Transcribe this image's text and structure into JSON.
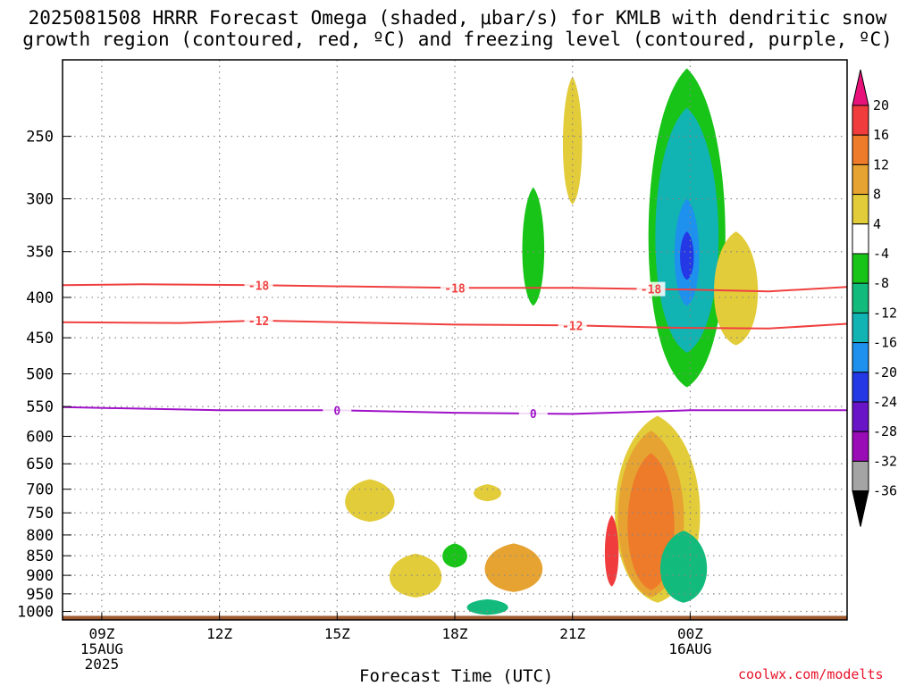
{
  "title": {
    "line1": "2025081508 HRRR Forecast Omega (shaded, μbar/s) for KMLB with dendritic snow",
    "line2": "growth region (contoured, red, ºC) and freezing level (contoured, purple, ºC)"
  },
  "xlabel": "Forecast Time (UTC)",
  "credit": "coolwx.com/modelts",
  "chart_data": {
    "type": "time-height cross section (filled contour)",
    "x_unit": "UTC time",
    "x_range": [
      "2025-08-15T08:00Z",
      "2025-08-16T04:00Z"
    ],
    "x_ticks": [
      {
        "time": "2025-08-15T09:00Z",
        "label": [
          "09Z",
          "15AUG",
          "2025"
        ]
      },
      {
        "time": "2025-08-15T12:00Z",
        "label": [
          "12Z"
        ]
      },
      {
        "time": "2025-08-15T15:00Z",
        "label": [
          "15Z"
        ]
      },
      {
        "time": "2025-08-15T18:00Z",
        "label": [
          "18Z"
        ]
      },
      {
        "time": "2025-08-15T21:00Z",
        "label": [
          "21Z"
        ]
      },
      {
        "time": "2025-08-16T00:00Z",
        "label": [
          "00Z",
          "16AUG"
        ]
      }
    ],
    "y_unit": "hPa",
    "y_scale": "log, inverted",
    "y_range": [
      1025,
      200
    ],
    "y_ticks": [
      250,
      300,
      350,
      400,
      450,
      500,
      550,
      600,
      650,
      700,
      750,
      800,
      850,
      900,
      950,
      1000
    ],
    "grid": true,
    "colorbar": {
      "labels": [
        20,
        16,
        12,
        8,
        4,
        -4,
        -8,
        -12,
        -16,
        -20,
        -24,
        -28,
        -32,
        -36
      ],
      "colors": [
        "#e8137a",
        "#f03c3c",
        "#ee7b2a",
        "#e6a332",
        "#e3cc3a",
        "#ffffff",
        "#18c418",
        "#12bb7c",
        "#12b3b3",
        "#1e90ee",
        "#2438e6",
        "#6a14c8",
        "#9a0cb6",
        "#a4a4a4",
        "#000000"
      ]
    },
    "contours": [
      {
        "name": "-18",
        "color": "#f04040",
        "points": [
          [
            "2025-08-15T08:00Z",
            386
          ],
          [
            "2025-08-15T10:00Z",
            385
          ],
          [
            "2025-08-15T13:00Z",
            386
          ],
          [
            "2025-08-15T18:00Z",
            389
          ],
          [
            "2025-08-15T21:00Z",
            389
          ],
          [
            "2025-08-16T00:00Z",
            391
          ],
          [
            "2025-08-16T02:00Z",
            393
          ],
          [
            "2025-08-16T04:00Z",
            388
          ]
        ],
        "labels": [
          "2025-08-15T13:00Z",
          "2025-08-15T18:00Z",
          "2025-08-15T23:00Z"
        ]
      },
      {
        "name": "-12",
        "color": "#f04040",
        "points": [
          [
            "2025-08-15T08:00Z",
            430
          ],
          [
            "2025-08-15T11:00Z",
            431
          ],
          [
            "2025-08-15T13:00Z",
            428
          ],
          [
            "2025-08-15T18:00Z",
            433
          ],
          [
            "2025-08-15T21:00Z",
            434
          ],
          [
            "2025-08-15T23:30Z",
            437
          ],
          [
            "2025-08-16T02:00Z",
            438
          ],
          [
            "2025-08-16T04:00Z",
            432
          ]
        ],
        "labels": [
          "2025-08-15T13:00Z",
          "2025-08-15T21:00Z"
        ]
      },
      {
        "name": "0",
        "color": "#a012c8",
        "points": [
          [
            "2025-08-15T08:00Z",
            551
          ],
          [
            "2025-08-15T12:00Z",
            556
          ],
          [
            "2025-08-15T15:00Z",
            556
          ],
          [
            "2025-08-15T18:00Z",
            560
          ],
          [
            "2025-08-15T21:00Z",
            562
          ],
          [
            "2025-08-16T00:00Z",
            556
          ],
          [
            "2025-08-16T04:00Z",
            556
          ]
        ],
        "labels": [
          "2025-08-15T15:00Z",
          "2025-08-15T20:00Z"
        ]
      }
    ],
    "omega_regions": [
      {
        "min": -12,
        "max": -4,
        "time": "2025-08-15T23:55Z",
        "p_top": 205,
        "p_bottom": 520
      },
      {
        "min": -16,
        "max": -12,
        "time": "2025-08-15T23:55Z",
        "p_top": 230,
        "p_bottom": 470
      },
      {
        "min": -20,
        "max": -16,
        "time": "2025-08-15T23:55Z",
        "p_top": 300,
        "p_bottom": 410
      },
      {
        "min": -24,
        "max": -20,
        "time": "2025-08-15T23:55Z",
        "p_top": 330,
        "p_bottom": 380
      },
      {
        "min": -8,
        "max": -4,
        "time": "2025-08-15T20:00Z",
        "p_top": 290,
        "p_bottom": 410
      },
      {
        "min": 4,
        "max": 8,
        "time": "2025-08-15T21:00Z",
        "p_top": 210,
        "p_bottom": 305
      },
      {
        "min": 4,
        "max": 8,
        "time": "2025-08-16T01:10Z",
        "p_top": 330,
        "p_bottom": 460
      },
      {
        "min": 4,
        "max": 8,
        "time": "2025-08-15T23:10Z",
        "p_top": 565,
        "p_bottom": 975
      },
      {
        "min": 8,
        "max": 12,
        "time": "2025-08-15T23:00Z",
        "p_top": 590,
        "p_bottom": 960
      },
      {
        "min": 12,
        "max": 16,
        "time": "2025-08-15T23:00Z",
        "p_top": 630,
        "p_bottom": 940
      },
      {
        "min": 16,
        "max": 20,
        "time": "2025-08-15T22:00Z",
        "p_top": 755,
        "p_bottom": 930
      },
      {
        "min": -16,
        "max": -4,
        "time": "2025-08-15T23:50Z",
        "p_top": 790,
        "p_bottom": 975
      },
      {
        "min": 4,
        "max": 8,
        "time": "2025-08-15T15:50Z",
        "p_top": 680,
        "p_bottom": 770
      },
      {
        "min": 4,
        "max": 8,
        "time": "2025-08-15T18:50Z",
        "p_top": 690,
        "p_bottom": 725
      },
      {
        "min": 4,
        "max": 8,
        "time": "2025-08-15T17:00Z",
        "p_top": 845,
        "p_bottom": 960
      },
      {
        "min": 4,
        "max": 12,
        "time": "2025-08-15T19:30Z",
        "p_top": 820,
        "p_bottom": 945
      },
      {
        "min": -8,
        "max": -4,
        "time": "2025-08-15T18:00Z",
        "p_top": 820,
        "p_bottom": 880
      },
      {
        "min": -16,
        "max": -4,
        "time": "2025-08-15T18:50Z",
        "p_top": 965,
        "p_bottom": 1010
      }
    ],
    "surface": {
      "p": 1013,
      "color": "#9e5a2e"
    }
  }
}
